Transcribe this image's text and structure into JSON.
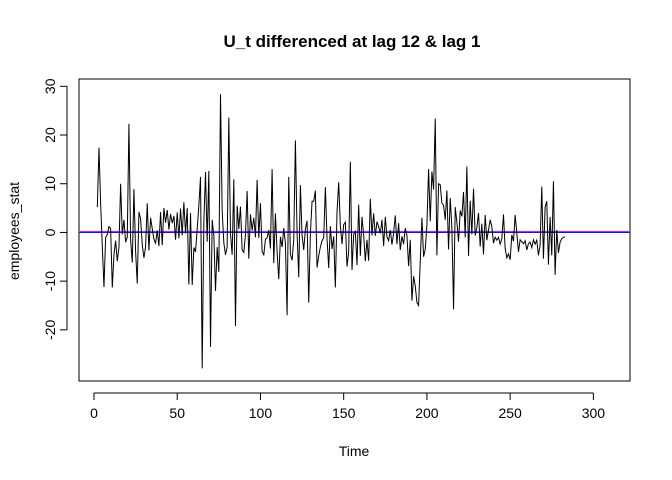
{
  "chart_data": {
    "type": "line",
    "title": "U_t differenced at lag 12 & lag 1",
    "xlabel": "Time",
    "ylabel": "employees_stat",
    "xlim": [
      -9,
      322
    ],
    "ylim": [
      -30.5,
      31.5
    ],
    "x_ticks": [
      0,
      50,
      100,
      150,
      200,
      250,
      300
    ],
    "y_ticks": [
      -20,
      -10,
      0,
      10,
      20,
      30
    ],
    "grid": false,
    "reference_lines": [
      {
        "type": "h",
        "y": 0,
        "color": "#1010ff"
      },
      {
        "type": "h",
        "y": 0.2,
        "color": "#a040c0"
      }
    ],
    "series": [
      {
        "color": "#000000",
        "x_start": 2,
        "x_step": 1,
        "values": [
          5.2,
          17.4,
          6.0,
          -3.0,
          -11.2,
          -1.1,
          -0.4,
          1.2,
          0.8,
          -11.3,
          -4.6,
          -1.7,
          -5.9,
          -3.1,
          10.0,
          -0.4,
          2.6,
          -2.0,
          -1.0,
          22.3,
          -1.5,
          -6.2,
          8.9,
          -3.9,
          -10.5,
          4.2,
          2.8,
          -2.5,
          -5.2,
          -3.0,
          6.0,
          -3.7,
          3.0,
          0.8,
          -1.4,
          -2.2,
          0.4,
          -2.8,
          4.2,
          -2.6,
          5.0,
          2.0,
          4.6,
          0.6,
          3.8,
          1.9,
          3.4,
          -1.5,
          4.1,
          -1.2,
          4.9,
          -0.6,
          6.2,
          -0.2,
          5.0,
          -10.7,
          4.0,
          -10.8,
          -3.1,
          -4.0,
          0.7,
          5.5,
          11.4,
          -27.9,
          2.1,
          12.4,
          -1.9,
          12.6,
          -23.5,
          2.6,
          -0.6,
          -12.0,
          -3.0,
          -8.1,
          28.4,
          4.5,
          -2.1,
          -4.6,
          -3.0,
          23.6,
          -0.2,
          -4.6,
          10.9,
          -19.2,
          5.5,
          0.7,
          5.3,
          -3.6,
          -4.1,
          -0.5,
          8.5,
          -5.4,
          3.7,
          0.4,
          3.0,
          -1.0,
          10.8,
          -1.1,
          6.0,
          -3.9,
          -4.6,
          -1.4,
          -1.1,
          0.5,
          -3.3,
          13.0,
          -6.3,
          3.9,
          -4.0,
          -9.6,
          -0.9,
          -3.0,
          0.9,
          -2.3,
          -17.0,
          11.4,
          -4.5,
          -5.7,
          -1.5,
          18.9,
          0.0,
          -9.2,
          9.7,
          -0.6,
          -3.6,
          0.7,
          2.4,
          -14.4,
          -0.3,
          6.4,
          6.4,
          8.6,
          -7.2,
          -4.8,
          -3.0,
          -1.7,
          -1.1,
          9.3,
          -1.2,
          -7.3,
          1.3,
          -3.4,
          -0.8,
          -11.3,
          4.2,
          10.3,
          1.4,
          -2.4,
          1.6,
          2.1,
          -7.0,
          -4.0,
          14.5,
          -7.7,
          -0.4,
          0.2,
          -6.7,
          5.7,
          -4.8,
          3.2,
          -0.5,
          -5.9,
          -1.5,
          -5.8,
          6.9,
          -0.6,
          3.9,
          -0.7,
          2.2,
          1.2,
          -0.2,
          2.6,
          -2.8,
          3.2,
          -0.9,
          -1.7,
          0.5,
          -2.5,
          -0.1,
          3.5,
          -2.4,
          1.9,
          -3.6,
          -0.8,
          -2.4,
          0.9,
          -0.6,
          -6.9,
          -1.5,
          -14.0,
          -9.0,
          -11.0,
          -14.4,
          -15.0,
          -5.9,
          3.0,
          -5.0,
          -3.5,
          1.5,
          13.0,
          2.3,
          12.5,
          8.8,
          23.4,
          -4.7,
          10.0,
          9.8,
          6.0,
          5.6,
          2.6,
          8.6,
          -3.5,
          7.1,
          1.0,
          -15.8,
          5.2,
          2.1,
          -1.9,
          4.5,
          3.3,
          8.3,
          -1.0,
          13.5,
          -4.8,
          6.5,
          -0.4,
          9.0,
          -0.6,
          1.0,
          4.0,
          -2.9,
          1.8,
          -4.5,
          3.6,
          -1.6,
          0.5,
          2.6,
          1.2,
          -2.2,
          -1.0,
          -1.6,
          -1.0,
          -2.4,
          -1.3,
          3.7,
          -3.3,
          -5.2,
          -4.4,
          -5.6,
          -0.5,
          -1.8,
          3.6,
          -0.1,
          -4.0,
          -1.5,
          -1.9,
          -2.3,
          -1.7,
          -3.6,
          -2.3,
          -2.0,
          -3.1,
          -1.5,
          -2.4,
          -1.6,
          -4.7,
          -2.6,
          9.4,
          -5.4,
          5.2,
          6.4,
          -6.6,
          3.2,
          -4.7,
          10.5,
          -8.7,
          0.5,
          -4.2,
          -2.0,
          -1.3,
          -1.0,
          -0.9
        ]
      }
    ]
  }
}
